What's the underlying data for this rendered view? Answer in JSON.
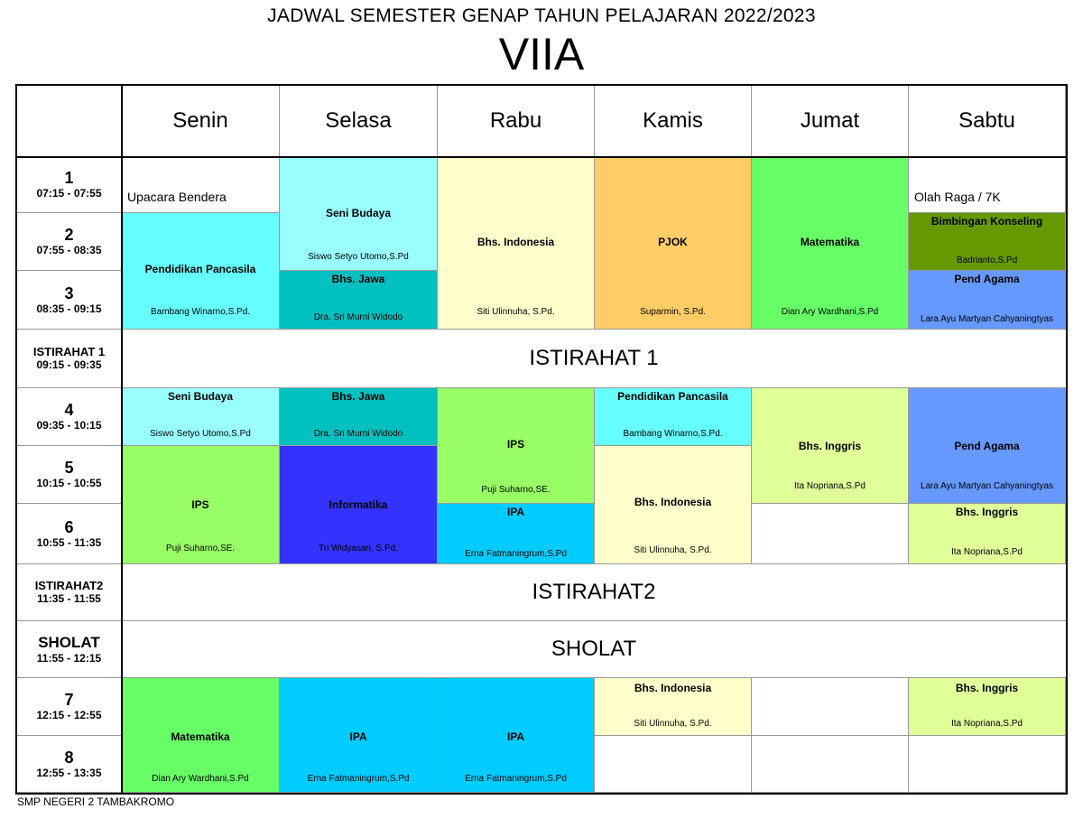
{
  "header": {
    "title": "JADWAL SEMESTER GENAP TAHUN PELAJARAN 2022/2023",
    "class_name": "VIIA"
  },
  "days": [
    "Senin",
    "Selasa",
    "Rabu",
    "Kamis",
    "Jumat",
    "Sabtu"
  ],
  "periods": [
    {
      "num": "1",
      "time": "07:15 - 07:55"
    },
    {
      "num": "2",
      "time": "07:55 - 08:35"
    },
    {
      "num": "3",
      "time": "08:35 - 09:15"
    },
    {
      "num": "ISTIRAHAT 1",
      "time": "09:15 - 09:35"
    },
    {
      "num": "4",
      "time": "09:35 - 10:15"
    },
    {
      "num": "5",
      "time": "10:15 - 10:55"
    },
    {
      "num": "6",
      "time": "10:55 - 11:35"
    },
    {
      "num": "ISTIRAHAT2",
      "time": "11:35 - 11:55"
    },
    {
      "num": "SHOLAT",
      "time": "11:55 - 12:15"
    },
    {
      "num": "7",
      "time": "12:15 - 12:55"
    },
    {
      "num": "8",
      "time": "12:55 - 13:35"
    }
  ],
  "bands": {
    "break1": "ISTIRAHAT 1",
    "break2": "ISTIRAHAT2",
    "prayer": "SHOLAT"
  },
  "colors": {
    "seni_budaya": "#99FFFF",
    "bhs_jawa": "#00C0C0",
    "bhs_indonesia": "#FFFFCC",
    "pjok": "#FFCC66",
    "matematika": "#66FF66",
    "bimbingan_konseling": "#669900",
    "pend_agama": "#6699FF",
    "pendidikan_pancasila": "#66FFFF",
    "ips": "#99FF66",
    "informatika": "#3333FF",
    "ipa": "#00CCFF",
    "bhs_inggris": "#E0FF99"
  },
  "slots": {
    "senin_upacara": "Upacara Bendera",
    "senin_pancasila": {
      "subject": "Pendidikan Pancasila",
      "teacher": "Bambang Winarno,S.Pd."
    },
    "senin_seni": {
      "subject": "Seni Budaya",
      "teacher": "Siswo Setyo Utomo,S.Pd"
    },
    "senin_ips": {
      "subject": "IPS",
      "teacher": "Puji Suharno,SE."
    },
    "senin_mat": {
      "subject": "Matematika",
      "teacher": "Dian Ary Wardhani,S.Pd"
    },
    "selasa_seni": {
      "subject": "Seni Budaya",
      "teacher": "Siswo Setyo Utomo,S.Pd"
    },
    "selasa_jawa1": {
      "subject": "Bhs. Jawa",
      "teacher": "Dra. Sri Murni Widodo"
    },
    "selasa_jawa2": {
      "subject": "Bhs. Jawa",
      "teacher": "Dra. Sri Murni Widodo"
    },
    "selasa_info": {
      "subject": "Informatika",
      "teacher": "Tri Widyasari, S.Pd."
    },
    "selasa_ipa": {
      "subject": "IPA",
      "teacher": "Erna Fatmaningrum,S.Pd"
    },
    "rabu_indo": {
      "subject": "Bhs. Indonesia",
      "teacher": "Siti Ulinnuha, S.Pd."
    },
    "rabu_ips": {
      "subject": "IPS",
      "teacher": "Puji Suharno,SE."
    },
    "rabu_ipa1": {
      "subject": "IPA",
      "teacher": "Erna Fatmaningrum,S.Pd"
    },
    "rabu_ipa2": {
      "subject": "IPA",
      "teacher": "Erna Fatmaningrum,S.Pd"
    },
    "kamis_pjok": {
      "subject": "PJOK",
      "teacher": "Suparmin, S.Pd."
    },
    "kamis_pancasila": {
      "subject": "Pendidikan Pancasila",
      "teacher": "Bambang Winarno,S.Pd."
    },
    "kamis_indo1": {
      "subject": "Bhs. Indonesia",
      "teacher": "Siti Ulinnuha, S.Pd."
    },
    "kamis_indo2": {
      "subject": "Bhs. Indonesia",
      "teacher": "Siti Ulinnuha, S.Pd."
    },
    "jumat_mat": {
      "subject": "Matematika",
      "teacher": "Dian Ary Wardhani,S.Pd"
    },
    "jumat_inggris": {
      "subject": "Bhs. Inggris",
      "teacher": "Ita Nopriana,S.Pd"
    },
    "sabtu_olahraga": "Olah Raga / 7K",
    "sabtu_bk": {
      "subject": "Bimbingan Konseling",
      "teacher": "Badrianto,S.Pd"
    },
    "sabtu_agama1": {
      "subject": "Pend Agama",
      "teacher": "Lara Ayu Martyan Cahyaningtyas"
    },
    "sabtu_agama2": {
      "subject": "Pend Agama",
      "teacher": "Lara Ayu Martyan Cahyaningtyas"
    },
    "sabtu_inggris1": {
      "subject": "Bhs. Inggris",
      "teacher": "Ita Nopriana,S.Pd"
    },
    "sabtu_inggris2": {
      "subject": "Bhs. Inggris",
      "teacher": "Ita Nopriana,S.Pd"
    }
  },
  "footer": "SMP NEGERI 2 TAMBAKROMO"
}
